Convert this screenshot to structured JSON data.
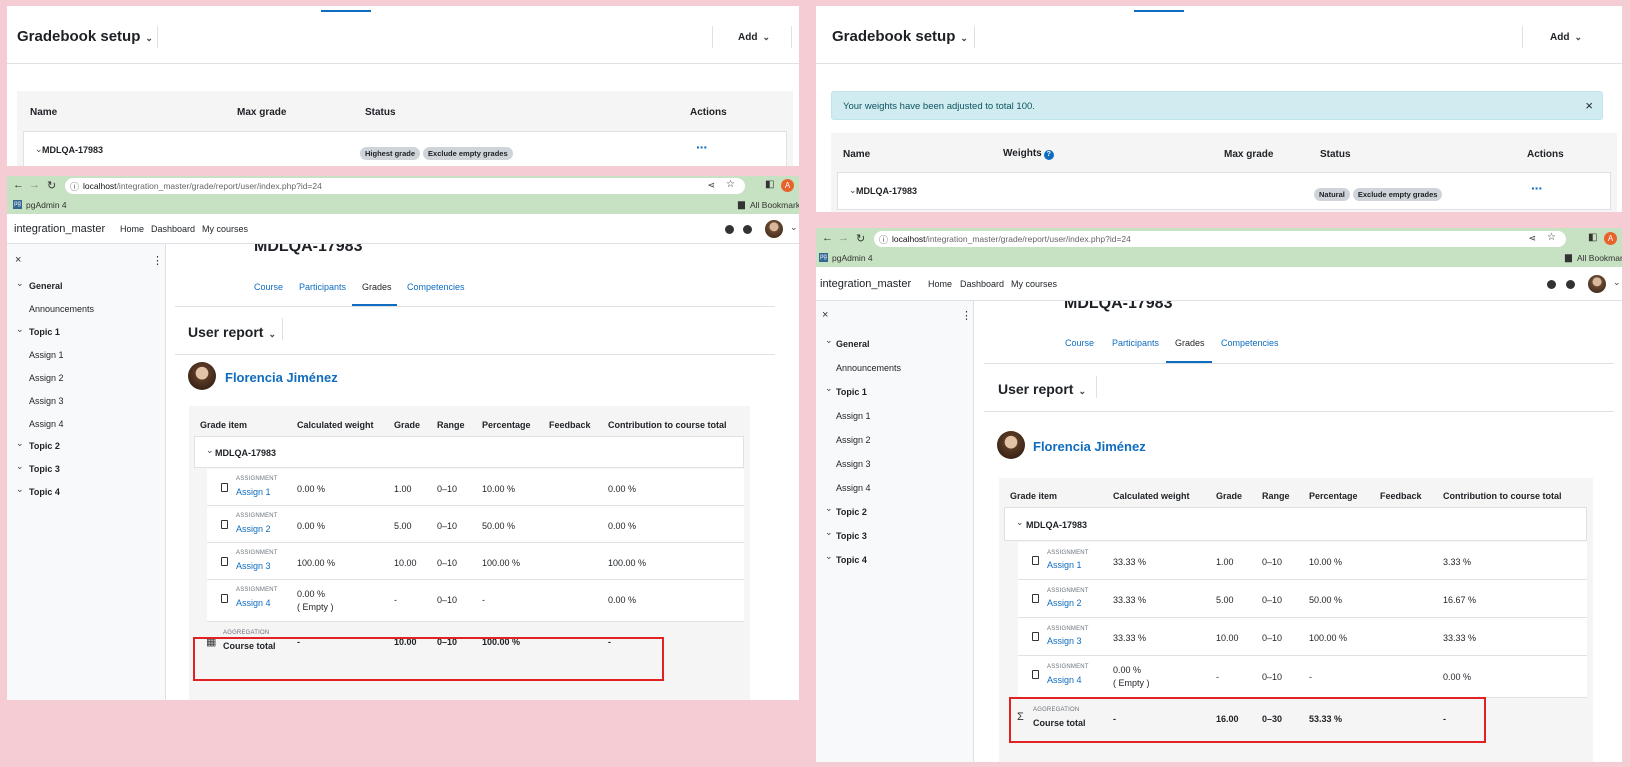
{
  "left": {
    "gradebook": {
      "title": "Gradebook setup",
      "add_label": "Add",
      "headers": {
        "name": "Name",
        "max_grade": "Max grade",
        "status": "Status",
        "actions": "Actions"
      },
      "row": {
        "name": "MDLQA-17983",
        "badges": [
          "Highest grade",
          "Exclude empty grades"
        ],
        "actions": "···"
      }
    },
    "browser": {
      "url_host": "localhost",
      "url_path": "/integration_master/grade/report/user/index.php?id=24",
      "bookmark": "pgAdmin 4",
      "bookmarks_all": "All Bookmarks",
      "profile": "A"
    },
    "nav": {
      "brand": "integration_master",
      "links": [
        "Home",
        "Dashboard",
        "My courses"
      ]
    },
    "drawer": {
      "close": "×",
      "sections": [
        {
          "label": "General",
          "items": [
            "Announcements"
          ]
        },
        {
          "label": "Topic 1",
          "items": [
            "Assign 1",
            "Assign 2",
            "Assign 3",
            "Assign 4"
          ]
        },
        {
          "label": "Topic 2",
          "items": []
        },
        {
          "label": "Topic 3",
          "items": []
        },
        {
          "label": "Topic 4",
          "items": []
        }
      ]
    },
    "course": {
      "title": "MDLQA-17983",
      "tabs": [
        "Course",
        "Participants",
        "Grades",
        "Competencies"
      ]
    },
    "report": {
      "title": "User report",
      "user": "Florencia Jiménez",
      "headers": [
        "Grade item",
        "Calculated weight",
        "Grade",
        "Range",
        "Percentage",
        "Feedback",
        "Contribution to course total"
      ],
      "category": "MDLQA-17983",
      "items": [
        {
          "type": "ASSIGNMENT",
          "name": "Assign 1",
          "weight": "0.00 %",
          "grade": "1.00",
          "range": "0–10",
          "percentage": "10.00 %",
          "contribution": "0.00 %",
          "note": ""
        },
        {
          "type": "ASSIGNMENT",
          "name": "Assign 2",
          "weight": "0.00 %",
          "grade": "5.00",
          "range": "0–10",
          "percentage": "50.00 %",
          "contribution": "0.00 %",
          "note": ""
        },
        {
          "type": "ASSIGNMENT",
          "name": "Assign 3",
          "weight": "100.00 %",
          "grade": "10.00",
          "range": "0–10",
          "percentage": "100.00 %",
          "contribution": "100.00 %",
          "note": ""
        },
        {
          "type": "ASSIGNMENT",
          "name": "Assign 4",
          "weight": "0.00 %",
          "grade": "-",
          "range": "0–10",
          "percentage": "-",
          "contribution": "0.00 %",
          "note": "( Empty )"
        }
      ],
      "total": {
        "type": "AGGREGATION",
        "name": "Course total",
        "weight": "-",
        "grade": "10.00",
        "range": "0–10",
        "percentage": "100.00 %",
        "contribution": "-"
      }
    }
  },
  "right": {
    "gradebook": {
      "title": "Gradebook setup",
      "add_label": "Add",
      "alert": "Your weights have been adjusted to total 100.",
      "headers": {
        "name": "Name",
        "weights": "Weights",
        "max_grade": "Max grade",
        "status": "Status",
        "actions": "Actions"
      },
      "row": {
        "name": "MDLQA-17983",
        "badges": [
          "Natural",
          "Exclude empty grades"
        ],
        "actions": "···"
      }
    },
    "browser": {
      "url_host": "localhost",
      "url_path": "/integration_master/grade/report/user/index.php?id=24",
      "bookmark": "pgAdmin 4",
      "bookmarks_all": "All Bookmarks",
      "profile": "A"
    },
    "nav": {
      "brand": "integration_master",
      "links": [
        "Home",
        "Dashboard",
        "My courses"
      ]
    },
    "drawer": {
      "close": "×",
      "sections": [
        {
          "label": "General",
          "items": [
            "Announcements"
          ]
        },
        {
          "label": "Topic 1",
          "items": [
            "Assign 1",
            "Assign 2",
            "Assign 3",
            "Assign 4"
          ]
        },
        {
          "label": "Topic 2",
          "items": []
        },
        {
          "label": "Topic 3",
          "items": []
        },
        {
          "label": "Topic 4",
          "items": []
        }
      ]
    },
    "course": {
      "title": "MDLQA-17983",
      "tabs": [
        "Course",
        "Participants",
        "Grades",
        "Competencies"
      ]
    },
    "report": {
      "title": "User report",
      "user": "Florencia Jiménez",
      "headers": [
        "Grade item",
        "Calculated weight",
        "Grade",
        "Range",
        "Percentage",
        "Feedback",
        "Contribution to course total"
      ],
      "category": "MDLQA-17983",
      "items": [
        {
          "type": "ASSIGNMENT",
          "name": "Assign 1",
          "weight": "33.33 %",
          "grade": "1.00",
          "range": "0–10",
          "percentage": "10.00 %",
          "contribution": "3.33 %",
          "note": ""
        },
        {
          "type": "ASSIGNMENT",
          "name": "Assign 2",
          "weight": "33.33 %",
          "grade": "5.00",
          "range": "0–10",
          "percentage": "50.00 %",
          "contribution": "16.67 %",
          "note": ""
        },
        {
          "type": "ASSIGNMENT",
          "name": "Assign 3",
          "weight": "33.33 %",
          "grade": "10.00",
          "range": "0–10",
          "percentage": "100.00 %",
          "contribution": "33.33 %",
          "note": ""
        },
        {
          "type": "ASSIGNMENT",
          "name": "Assign 4",
          "weight": "0.00 %",
          "grade": "-",
          "range": "0–10",
          "percentage": "-",
          "contribution": "0.00 %",
          "note": "( Empty )"
        }
      ],
      "total": {
        "type": "AGGREGATION",
        "name": "Course total",
        "weight": "-",
        "grade": "16.00",
        "range": "0–30",
        "percentage": "53.33 %",
        "contribution": "-"
      }
    }
  }
}
